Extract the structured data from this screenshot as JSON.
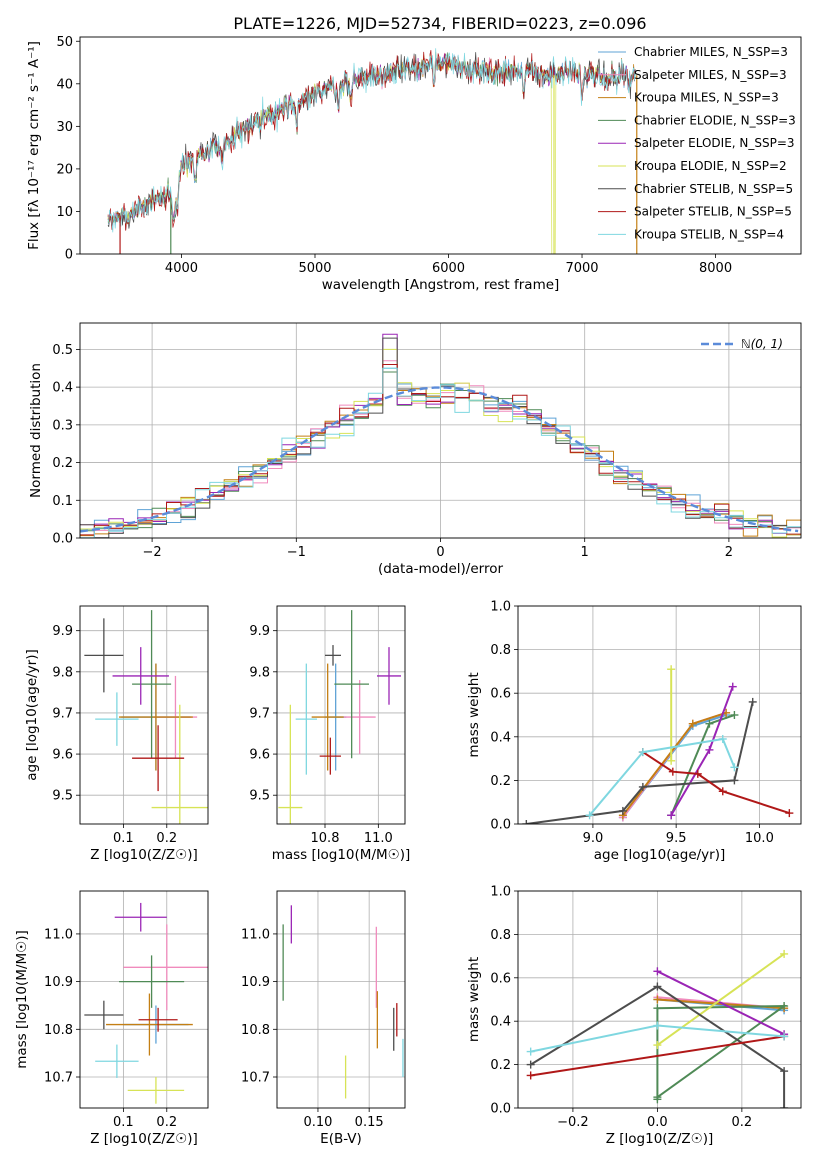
{
  "figure": {
    "title": "PLATE=1226, MJD=52734, FIBERID=0223, z=0.096"
  },
  "chart_data": [
    {
      "id": "spectrum",
      "type": "line",
      "title": "PLATE=1226, MJD=52734, FIBERID=0223, z=0.096",
      "xlabel": "wavelength [Angstrom, rest frame]",
      "ylabel": "Flux [fλ 10⁻¹⁷ erg cm⁻² s⁻¹ A⁻¹]",
      "xlim": [
        3240,
        8640
      ],
      "ylim": [
        0,
        51
      ],
      "xticks": [
        4000,
        5000,
        6000,
        7000,
        8000
      ],
      "yticks": [
        0,
        10,
        20,
        30,
        40,
        50
      ],
      "grid": false,
      "legend_position": "right",
      "series": [
        {
          "name": "Chabrier MILES, N_SSP=3",
          "color": "#5fa3d6"
        },
        {
          "name": "Salpeter MILES, N_SSP=3",
          "color": "#f08bbd"
        },
        {
          "name": "Kroupa MILES, N_SSP=3",
          "color": "#c47f14"
        },
        {
          "name": "Chabrier ELODIE, N_SSP=3",
          "color": "#4f8a56"
        },
        {
          "name": "Salpeter ELODIE, N_SSP=3",
          "color": "#9a25b5"
        },
        {
          "name": "Kroupa ELODIE, N_SSP=2",
          "color": "#d7e356"
        },
        {
          "name": "Chabrier STELIB, N_SSP=5",
          "color": "#4d4d4d"
        },
        {
          "name": "Salpeter STELIB, N_SSP=5",
          "color": "#b01818"
        },
        {
          "name": "Kroupa STELIB, N_SSP=4",
          "color": "#7fd7e0"
        }
      ],
      "continuum_nodes": {
        "x": [
          3450,
          3600,
          3700,
          3800,
          3900,
          3950,
          4000,
          4100,
          4200,
          4300,
          4400,
          4500,
          4600,
          4700,
          4800,
          4900,
          5000,
          5100,
          5200,
          5300,
          5400,
          5500,
          5600,
          5700,
          5800,
          5900,
          6000,
          6100,
          6200,
          6300,
          6400,
          6500,
          6600,
          6700,
          6800,
          6900,
          7000,
          7100,
          7200,
          7300,
          7400
        ],
        "y": [
          8,
          9,
          11,
          13,
          14,
          12,
          21,
          23,
          24,
          26,
          28,
          30,
          32,
          33,
          35,
          36,
          38,
          39,
          40,
          41,
          42,
          42,
          43,
          44,
          44,
          45,
          45,
          44,
          43,
          43,
          42,
          43,
          43,
          42,
          42,
          43,
          42,
          42,
          41,
          42,
          42
        ]
      },
      "absorption_features": [
        3934,
        3968,
        4102,
        4304,
        4861,
        5175,
        5270,
        5893,
        6563,
        7000
      ]
    },
    {
      "id": "residuals",
      "type": "line",
      "subtype": "step-histogram",
      "xlabel": "(data-model)/error",
      "ylabel": "Normed distribution",
      "xlim": [
        -2.5,
        2.5
      ],
      "ylim": [
        0,
        0.57
      ],
      "xticks": [
        -2,
        -1,
        0,
        1,
        2
      ],
      "yticks": [
        0.0,
        0.1,
        0.2,
        0.3,
        0.4,
        0.5
      ],
      "grid": true,
      "legend_position": "top-right",
      "bin_width": 0.1,
      "reference_curve": {
        "name": "ℕ(0, 1)",
        "color": "#5b8bd9",
        "style": "dashed",
        "mu": 0,
        "sigma": 1
      },
      "histogram_peaks": [
        0.45,
        0.47,
        0.46,
        0.44,
        0.54,
        0.5,
        0.53,
        0.46,
        0.45
      ]
    },
    {
      "id": "age-vs-Z",
      "type": "scatter",
      "subtype": "errorbar",
      "xlabel": "Z [log10(Z/Z☉)]",
      "ylabel": "age  [log10(age/yr)]",
      "xlim": [
        0.0,
        0.295
      ],
      "ylim": [
        9.43,
        9.96
      ],
      "xticks": [
        0.1,
        0.2
      ],
      "yticks": [
        9.5,
        9.6,
        9.7,
        9.8,
        9.9
      ],
      "grid": true,
      "points": [
        {
          "x": 0.175,
          "y": 9.69,
          "xerr": 0.08,
          "yerr": 0.13,
          "color": "#5fa3d6"
        },
        {
          "x": 0.22,
          "y": 9.69,
          "xerr": 0.05,
          "yerr": 0.1,
          "color": "#f08bbd"
        },
        {
          "x": 0.175,
          "y": 9.69,
          "xerr": 0.085,
          "yerr": 0.13,
          "color": "#c47f14"
        },
        {
          "x": 0.165,
          "y": 9.77,
          "xerr": 0.045,
          "yerr": 0.18,
          "color": "#4f8a56"
        },
        {
          "x": 0.14,
          "y": 9.79,
          "xerr": 0.065,
          "yerr": 0.07,
          "color": "#9a25b5"
        },
        {
          "x": 0.23,
          "y": 9.47,
          "xerr": 0.065,
          "yerr": 0.25,
          "color": "#d7e356"
        },
        {
          "x": 0.055,
          "y": 9.84,
          "xerr": 0.045,
          "yerr": 0.09,
          "color": "#4d4d4d"
        },
        {
          "x": 0.18,
          "y": 9.59,
          "xerr": 0.06,
          "yerr": 0.08,
          "color": "#b01818"
        },
        {
          "x": 0.085,
          "y": 9.685,
          "xerr": 0.05,
          "yerr": 0.065,
          "color": "#7fd7e0"
        }
      ]
    },
    {
      "id": "age-vs-mass",
      "type": "scatter",
      "subtype": "errorbar",
      "xlabel": "mass [log10(M/M☉)]",
      "ylabel": "",
      "xlim": [
        10.62,
        11.1
      ],
      "ylim": [
        9.43,
        9.96
      ],
      "xticks": [
        10.8,
        11.0
      ],
      "yticks": [
        9.5,
        9.6,
        9.7,
        9.8,
        9.9
      ],
      "grid": true,
      "points": [
        {
          "x": 10.84,
          "y": 9.69,
          "xerr": 0.04,
          "yerr": 0.13,
          "color": "#5fa3d6"
        },
        {
          "x": 10.93,
          "y": 9.69,
          "xerr": 0.06,
          "yerr": 0.09,
          "color": "#f08bbd"
        },
        {
          "x": 10.81,
          "y": 9.69,
          "xerr": 0.06,
          "yerr": 0.13,
          "color": "#c47f14"
        },
        {
          "x": 10.9,
          "y": 9.77,
          "xerr": 0.065,
          "yerr": 0.18,
          "color": "#4f8a56"
        },
        {
          "x": 11.04,
          "y": 9.79,
          "xerr": 0.045,
          "yerr": 0.07,
          "color": "#9a25b5"
        },
        {
          "x": 10.67,
          "y": 9.47,
          "xerr": 0.045,
          "yerr": 0.25,
          "color": "#d7e356"
        },
        {
          "x": 10.83,
          "y": 9.84,
          "xerr": 0.03,
          "yerr": 0.025,
          "color": "#4d4d4d"
        },
        {
          "x": 10.82,
          "y": 9.595,
          "xerr": 0.04,
          "yerr": 0.045,
          "color": "#b01818"
        },
        {
          "x": 10.73,
          "y": 9.685,
          "xerr": 0.04,
          "yerr": 0.135,
          "color": "#7fd7e0"
        }
      ]
    },
    {
      "id": "weight-vs-age",
      "type": "line",
      "xlabel": "age  [log10(age/yr)]",
      "ylabel": "mass weight",
      "xlim": [
        8.55,
        10.25
      ],
      "ylim": [
        0,
        1
      ],
      "xticks": [
        9.0,
        9.5,
        10.0
      ],
      "yticks": [
        0.0,
        0.2,
        0.4,
        0.6,
        0.8,
        1.0
      ],
      "grid": true,
      "series": [
        {
          "color": "#5fa3d6",
          "x": [
            9.18,
            9.6,
            9.8
          ],
          "y": [
            0.03,
            0.45,
            0.5
          ]
        },
        {
          "color": "#f08bbd",
          "x": [
            9.18,
            9.6,
            9.8
          ],
          "y": [
            0.03,
            0.46,
            0.51
          ]
        },
        {
          "color": "#c47f14",
          "x": [
            9.18,
            9.6,
            9.8
          ],
          "y": [
            0.04,
            0.46,
            0.51
          ]
        },
        {
          "color": "#4f8a56",
          "x": [
            9.47,
            9.7,
            9.85
          ],
          "y": [
            0.04,
            0.46,
            0.5
          ]
        },
        {
          "color": "#9a25b5",
          "x": [
            9.47,
            9.7,
            9.84
          ],
          "y": [
            0.04,
            0.34,
            0.63
          ]
        },
        {
          "color": "#d7e356",
          "x": [
            9.47,
            9.47
          ],
          "y": [
            0.29,
            0.71
          ]
        },
        {
          "color": "#4d4d4d",
          "x": [
            8.6,
            9.18,
            9.3,
            9.85,
            9.96
          ],
          "y": [
            0.0,
            0.06,
            0.17,
            0.2,
            0.56
          ]
        },
        {
          "color": "#b01818",
          "x": [
            9.3,
            9.48,
            9.63,
            9.78,
            10.18
          ],
          "y": [
            0.33,
            0.24,
            0.23,
            0.15,
            0.05
          ]
        },
        {
          "color": "#7fd7e0",
          "x": [
            8.98,
            9.3,
            9.78,
            9.85
          ],
          "y": [
            0.04,
            0.33,
            0.39,
            0.26
          ]
        }
      ]
    },
    {
      "id": "mass-vs-Z",
      "type": "scatter",
      "subtype": "errorbar",
      "xlabel": "Z [log10(Z/Z☉)]",
      "ylabel": "mass [log10(M/M☉)]",
      "xlim": [
        0.0,
        0.295
      ],
      "ylim": [
        10.635,
        11.09
      ],
      "xticks": [
        0.1,
        0.2
      ],
      "yticks": [
        10.7,
        10.8,
        10.9,
        11.0
      ],
      "grid": true,
      "points": [
        {
          "x": 0.175,
          "y": 10.81,
          "xerr": 0.075,
          "yerr": 0.04,
          "color": "#5fa3d6"
        },
        {
          "x": 0.2,
          "y": 10.93,
          "xerr": 0.1,
          "yerr": 0.09,
          "color": "#f08bbd"
        },
        {
          "x": 0.16,
          "y": 10.81,
          "xerr": 0.1,
          "yerr": 0.065,
          "color": "#c47f14"
        },
        {
          "x": 0.165,
          "y": 10.9,
          "xerr": 0.075,
          "yerr": 0.055,
          "color": "#4f8a56"
        },
        {
          "x": 0.14,
          "y": 11.035,
          "xerr": 0.06,
          "yerr": 0.03,
          "color": "#9a25b5"
        },
        {
          "x": 0.175,
          "y": 10.672,
          "xerr": 0.065,
          "yerr": 0.028,
          "color": "#d7e356"
        },
        {
          "x": 0.055,
          "y": 10.83,
          "xerr": 0.045,
          "yerr": 0.03,
          "color": "#4d4d4d"
        },
        {
          "x": 0.18,
          "y": 10.82,
          "xerr": 0.045,
          "yerr": 0.025,
          "color": "#b01818"
        },
        {
          "x": 0.085,
          "y": 10.733,
          "xerr": 0.05,
          "yerr": 0.035,
          "color": "#7fd7e0"
        }
      ]
    },
    {
      "id": "mass-vs-ebv",
      "type": "scatter",
      "subtype": "errorbar",
      "xlabel": "E(B-V)",
      "ylabel": "",
      "xlim": [
        0.06,
        0.185
      ],
      "ylim": [
        10.635,
        11.09
      ],
      "xticks": [
        0.1,
        0.15
      ],
      "yticks": [
        10.7,
        10.8,
        10.9,
        11.0
      ],
      "grid": true,
      "points": [
        {
          "x": 0.157,
          "y": 10.93,
          "yerr": 0.085,
          "color": "#f08bbd"
        },
        {
          "x": 0.158,
          "y": 10.82,
          "yerr": 0.06,
          "color": "#c47f14"
        },
        {
          "x": 0.066,
          "y": 10.94,
          "yerr": 0.08,
          "color": "#4f8a56"
        },
        {
          "x": 0.074,
          "y": 11.02,
          "yerr": 0.04,
          "color": "#9a25b5"
        },
        {
          "x": 0.127,
          "y": 10.7,
          "yerr": 0.045,
          "color": "#d7e356"
        },
        {
          "x": 0.174,
          "y": 10.8,
          "yerr": 0.045,
          "color": "#4d4d4d"
        },
        {
          "x": 0.177,
          "y": 10.82,
          "yerr": 0.035,
          "color": "#b01818"
        },
        {
          "x": 0.183,
          "y": 10.74,
          "yerr": 0.04,
          "color": "#7fd7e0"
        }
      ]
    },
    {
      "id": "weight-vs-Z",
      "type": "line",
      "xlabel": "Z [log10(Z/Z☉)]",
      "ylabel": "mass weight",
      "xlim": [
        -0.33,
        0.34
      ],
      "ylim": [
        0,
        1
      ],
      "xticks": [
        -0.2,
        0.0,
        0.2
      ],
      "yticks": [
        0.0,
        0.2,
        0.4,
        0.6,
        0.8,
        1.0
      ],
      "grid": true,
      "series": [
        {
          "color": "#5fa3d6",
          "x": [
            0.0,
            0.3
          ],
          "y": [
            0.5,
            0.45
          ]
        },
        {
          "color": "#f08bbd",
          "x": [
            0.0,
            0.3
          ],
          "y": [
            0.51,
            0.46
          ]
        },
        {
          "color": "#c47f14",
          "x": [
            0.0,
            0.3
          ],
          "y": [
            0.5,
            0.46
          ]
        },
        {
          "color": "#4f8a56",
          "x": [
            0.0,
            0.0,
            0.3,
            0.0
          ],
          "y": [
            0.04,
            0.46,
            0.47,
            0.05
          ]
        },
        {
          "color": "#9a25b5",
          "x": [
            0.0,
            0.3
          ],
          "y": [
            0.63,
            0.34
          ]
        },
        {
          "color": "#d7e356",
          "x": [
            0.0,
            0.3
          ],
          "y": [
            0.29,
            0.71
          ]
        },
        {
          "color": "#4d4d4d",
          "x": [
            -0.3,
            0.0,
            0.3,
            0.3
          ],
          "y": [
            0.2,
            0.56,
            0.17,
            0.0
          ]
        },
        {
          "color": "#b01818",
          "x": [
            -0.3,
            0.3
          ],
          "y": [
            0.15,
            0.33
          ]
        },
        {
          "color": "#7fd7e0",
          "x": [
            -0.3,
            0.0,
            0.3
          ],
          "y": [
            0.26,
            0.38,
            0.33
          ]
        }
      ]
    }
  ]
}
